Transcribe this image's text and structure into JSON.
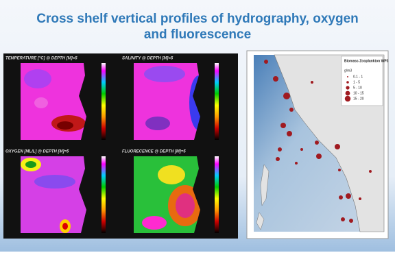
{
  "header": {
    "title_line1": "Cross shelf vertical profiles of hydrography, oxygen",
    "title_line2": "and fluorescence"
  },
  "panels": [
    {
      "label": "TEMPERATURE [°C] @ DEPTH [M]=5"
    },
    {
      "label": "SALINITY @ DEPTH [M]=5"
    },
    {
      "label": "OXYGEN [ML/L] @ DEPTH [M]=5"
    },
    {
      "label": "FLUORECENCE @ DEPTH [M]=5"
    }
  ],
  "map": {
    "legend_title": "Biomass Zooplankton WP3",
    "legend_unit": "g/m3",
    "legend_items": [
      "0.1 - 1",
      "1 - 5",
      "5 - 10",
      "10 - 15",
      "15 - 20"
    ]
  }
}
